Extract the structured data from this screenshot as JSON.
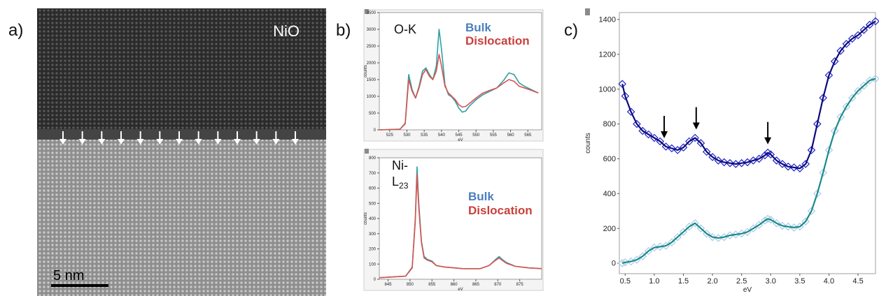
{
  "panels": {
    "a": {
      "label": "a)",
      "material": "NiO",
      "scalebar_label": "5 nm",
      "arrow_count": 13,
      "colors": {
        "top": "#2a2a2a",
        "bottom": "#9c9c9c",
        "arrow": "#ffffff"
      }
    },
    "b": {
      "label": "b)",
      "colors": {
        "bulk": "#2ea1a6",
        "dislocation": "#d9534f",
        "legend_bulk": "#4a7fbf",
        "legend_dislocation": "#c9403c"
      }
    },
    "c": {
      "label": "c)"
    }
  },
  "chart_data": [
    {
      "id": "ok-edge",
      "type": "line",
      "annotation": "O-K",
      "legend": [
        "Bulk",
        "Dislocation"
      ],
      "xlabel": "eV",
      "ylabel": "counts",
      "xlim": [
        522,
        569
      ],
      "ylim": [
        0,
        3500
      ],
      "xticks": [
        525,
        530,
        535,
        540,
        545,
        550,
        555,
        560,
        565
      ],
      "yticks": [
        0,
        500,
        1000,
        1500,
        2000,
        2500,
        3000,
        3500
      ],
      "series": [
        {
          "name": "Bulk",
          "color": "#2ea1a6",
          "x": [
            522,
            528,
            529.5,
            530.5,
            531.5,
            532.5,
            533.5,
            534.5,
            535.5,
            536.5,
            537.5,
            538.5,
            539.3,
            540,
            541,
            542,
            543,
            544,
            545,
            546,
            547,
            548,
            550,
            552,
            554,
            556,
            558,
            559.5,
            561,
            562.5,
            564,
            566,
            568
          ],
          "y": [
            0,
            20,
            200,
            1650,
            1200,
            950,
            1300,
            1750,
            1850,
            1650,
            1500,
            1900,
            3000,
            2400,
            1350,
            1050,
            980,
            850,
            650,
            530,
            560,
            700,
            900,
            1050,
            1150,
            1250,
            1480,
            1700,
            1650,
            1400,
            1300,
            1200,
            1100
          ]
        },
        {
          "name": "Dislocation",
          "color": "#d9534f",
          "x": [
            522,
            528,
            529.5,
            530.5,
            531.5,
            532.5,
            533.5,
            534.5,
            535.5,
            536.5,
            537.5,
            538.5,
            539.3,
            540,
            541,
            542,
            543,
            544,
            545,
            546,
            547,
            548,
            550,
            552,
            554,
            556,
            558,
            559.5,
            561,
            562.5,
            564,
            566,
            568
          ],
          "y": [
            0,
            20,
            180,
            1500,
            1150,
            950,
            1250,
            1650,
            1800,
            1600,
            1500,
            1750,
            2250,
            1900,
            1300,
            1100,
            1000,
            900,
            750,
            680,
            700,
            780,
            950,
            1100,
            1180,
            1250,
            1400,
            1500,
            1450,
            1300,
            1250,
            1180,
            1100
          ]
        }
      ]
    },
    {
      "id": "nil-edge",
      "type": "line",
      "annotation": "Ni-L23",
      "legend": [
        "Bulk",
        "Dislocation"
      ],
      "xlabel": "eV",
      "ylabel": "counts",
      "xlim": [
        843,
        880
      ],
      "ylim": [
        0,
        800
      ],
      "xticks": [
        845,
        850,
        855,
        860,
        865,
        870,
        875
      ],
      "yticks": [
        0,
        100,
        200,
        300,
        400,
        500,
        600,
        700,
        800
      ],
      "series": [
        {
          "name": "Bulk",
          "color": "#2ea1a6",
          "x": [
            843,
            849,
            850.5,
            851.2,
            851.6,
            852,
            852.6,
            853.2,
            854,
            855,
            856,
            858,
            860,
            862,
            866,
            868,
            869.5,
            870.3,
            871,
            872,
            874,
            877,
            880
          ],
          "y": [
            10,
            20,
            80,
            400,
            740,
            500,
            250,
            150,
            130,
            120,
            90,
            80,
            75,
            70,
            70,
            90,
            130,
            150,
            130,
            110,
            85,
            75,
            70
          ]
        },
        {
          "name": "Dislocation",
          "color": "#d9534f",
          "x": [
            843,
            849,
            850.5,
            851.2,
            851.6,
            852,
            852.6,
            853.2,
            854,
            855,
            856,
            858,
            860,
            862,
            866,
            868,
            869.5,
            870.3,
            871,
            872,
            874,
            877,
            880
          ],
          "y": [
            10,
            20,
            75,
            380,
            690,
            470,
            240,
            140,
            125,
            115,
            90,
            80,
            75,
            70,
            70,
            90,
            125,
            140,
            125,
            105,
            85,
            75,
            70
          ]
        }
      ]
    },
    {
      "id": "low-loss",
      "type": "scatter",
      "xlabel": "eV",
      "ylabel": "counts",
      "xlim": [
        0.4,
        4.8
      ],
      "ylim": [
        -60,
        1440
      ],
      "xticks": [
        0.5,
        1.0,
        1.5,
        2.0,
        2.5,
        3.0,
        3.5,
        4.0,
        4.5
      ],
      "yticks": [
        0,
        200,
        400,
        600,
        800,
        1000,
        1200,
        1400
      ],
      "arrows_x": [
        1.17,
        1.72,
        2.95
      ],
      "series": [
        {
          "name": "upper",
          "marker_color": "#1f22c8",
          "line_color": "#0a0c7a",
          "x": [
            0.45,
            0.5,
            0.6,
            0.7,
            0.8,
            0.9,
            1.0,
            1.1,
            1.2,
            1.3,
            1.4,
            1.5,
            1.6,
            1.7,
            1.8,
            1.9,
            2.0,
            2.1,
            2.2,
            2.3,
            2.4,
            2.5,
            2.6,
            2.7,
            2.8,
            2.9,
            2.95,
            3.0,
            3.1,
            3.2,
            3.3,
            3.4,
            3.5,
            3.6,
            3.7,
            3.8,
            3.9,
            4.0,
            4.1,
            4.2,
            4.3,
            4.4,
            4.5,
            4.6,
            4.7,
            4.8
          ],
          "y": [
            1030,
            960,
            870,
            800,
            760,
            740,
            720,
            700,
            670,
            660,
            650,
            665,
            700,
            720,
            690,
            640,
            610,
            590,
            580,
            575,
            570,
            575,
            580,
            590,
            600,
            620,
            635,
            625,
            590,
            570,
            555,
            550,
            545,
            570,
            650,
            800,
            950,
            1080,
            1160,
            1220,
            1260,
            1290,
            1310,
            1340,
            1370,
            1390
          ]
        },
        {
          "name": "lower",
          "marker_color": "#a9cbe6",
          "line_color": "#1a8a8a",
          "x": [
            0.45,
            0.5,
            0.6,
            0.7,
            0.8,
            0.9,
            1.0,
            1.1,
            1.2,
            1.3,
            1.4,
            1.5,
            1.6,
            1.7,
            1.8,
            1.9,
            2.0,
            2.1,
            2.2,
            2.3,
            2.4,
            2.5,
            2.6,
            2.7,
            2.8,
            2.9,
            2.95,
            3.0,
            3.1,
            3.2,
            3.3,
            3.4,
            3.5,
            3.6,
            3.7,
            3.8,
            3.9,
            4.0,
            4.1,
            4.2,
            4.3,
            4.4,
            4.5,
            4.6,
            4.7,
            4.8
          ],
          "y": [
            0,
            5,
            10,
            20,
            40,
            70,
            90,
            95,
            100,
            120,
            150,
            180,
            210,
            230,
            200,
            170,
            150,
            145,
            150,
            160,
            165,
            170,
            180,
            200,
            220,
            245,
            255,
            250,
            230,
            215,
            210,
            205,
            210,
            240,
            300,
            400,
            520,
            650,
            760,
            840,
            900,
            950,
            990,
            1020,
            1050,
            1060
          ]
        }
      ]
    }
  ]
}
